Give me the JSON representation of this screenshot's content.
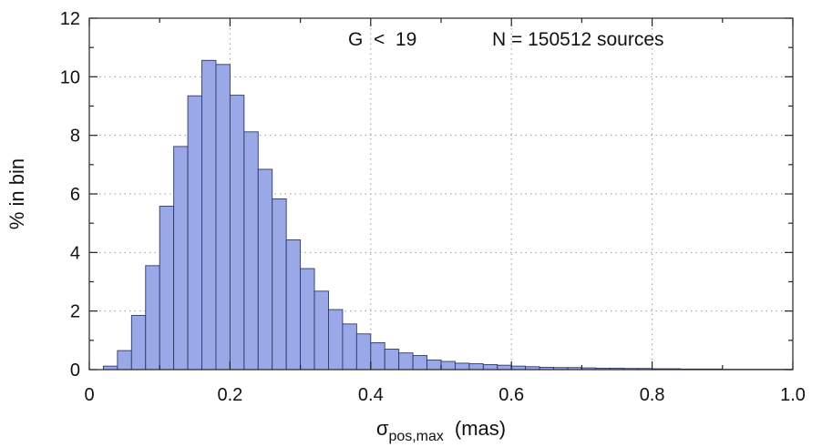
{
  "chart_data": {
    "type": "bar",
    "annotations": [
      "G  <  19",
      "N = 150512 sources"
    ],
    "xlabel": "σ",
    "xlabel_subscript": "pos,max",
    "xlabel_unit": "(mas)",
    "ylabel": "% in bin",
    "xlim": [
      0.0,
      1.0
    ],
    "ylim": [
      0,
      12
    ],
    "xticks": [
      0.0,
      0.2,
      0.4,
      0.6,
      0.8,
      1.0
    ],
    "xtick_labels": [
      "0",
      "0.2",
      "0.4",
      "0.6",
      "0.8",
      "1.0"
    ],
    "yticks": [
      0,
      2,
      4,
      6,
      8,
      10,
      12
    ],
    "ytick_labels": [
      "0",
      "2",
      "4",
      "6",
      "8",
      "10",
      "12"
    ],
    "grid": true,
    "bar_color": "#9aa8e8",
    "bar_edge_color": "#2e3a66",
    "bin_width": 0.02,
    "bin_start": [
      0.02,
      0.04,
      0.06,
      0.08,
      0.1,
      0.12,
      0.14,
      0.16,
      0.18,
      0.2,
      0.22,
      0.24,
      0.26,
      0.28,
      0.3,
      0.32,
      0.34,
      0.36,
      0.38,
      0.4,
      0.42,
      0.44,
      0.46,
      0.48,
      0.5,
      0.52,
      0.54,
      0.56,
      0.58,
      0.6,
      0.62,
      0.64,
      0.66,
      0.68,
      0.7,
      0.72,
      0.74,
      0.76,
      0.78,
      0.8,
      0.82,
      0.84,
      0.86,
      0.88,
      0.9,
      0.92,
      0.94,
      0.96,
      0.98
    ],
    "values": [
      0.12,
      0.65,
      1.85,
      3.55,
      5.58,
      7.62,
      9.35,
      10.56,
      10.42,
      9.37,
      8.12,
      6.84,
      5.83,
      4.43,
      3.45,
      2.68,
      2.05,
      1.56,
      1.22,
      0.92,
      0.7,
      0.57,
      0.48,
      0.33,
      0.28,
      0.22,
      0.2,
      0.17,
      0.15,
      0.12,
      0.1,
      0.08,
      0.07,
      0.07,
      0.06,
      0.05,
      0.05,
      0.04,
      0.04,
      0.03,
      0.03,
      0.02,
      0.02,
      0.02,
      0.01,
      0.01,
      0.01,
      0.01,
      0.01
    ]
  }
}
